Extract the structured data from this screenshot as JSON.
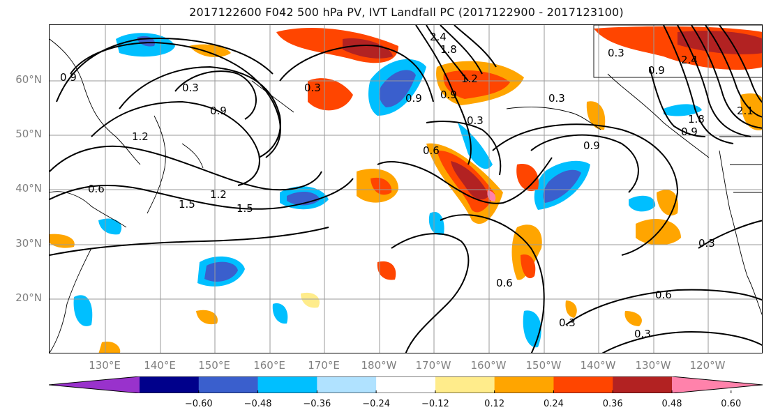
{
  "title": "2017122600 F042 500 hPa PV, IVT Landfall PC (2017122900 - 2017123100)",
  "lat_labels": [
    "60°N",
    "50°N",
    "40°N",
    "30°N",
    "20°N"
  ],
  "lon_labels": [
    "130°E",
    "140°E",
    "150°E",
    "160°E",
    "170°E",
    "180°W",
    "170°W",
    "160°W",
    "150°W",
    "140°W",
    "130°W",
    "120°W"
  ],
  "colorbar": {
    "ticks": [
      "−0.60",
      "−0.48",
      "−0.36",
      "−0.24",
      "−0.12",
      "0.12",
      "0.24",
      "0.36",
      "0.48",
      "0.60"
    ],
    "colors": [
      "#9932CC",
      "#00008B",
      "#3A5FCD",
      "#00BFFF",
      "#B0E2FF",
      "#FFFFFF",
      "#FFEC8B",
      "#FFA500",
      "#FF4500",
      "#B22222",
      "#FF82AB"
    ]
  },
  "contour_labels": [
    "0.9",
    "0.3",
    "0.9",
    "1.2",
    "0.6",
    "1.5",
    "1.2",
    "1.5",
    "0.3",
    "0.9",
    "2.4",
    "1.8",
    "1.2",
    "0.9",
    "0.3",
    "0.6",
    "0.9",
    "0.3",
    "0.9",
    "2.4",
    "1.8",
    "0.9",
    "2.1",
    "0.3",
    "0.6",
    "0.3",
    "0.3",
    "0.6",
    "0.3"
  ]
}
